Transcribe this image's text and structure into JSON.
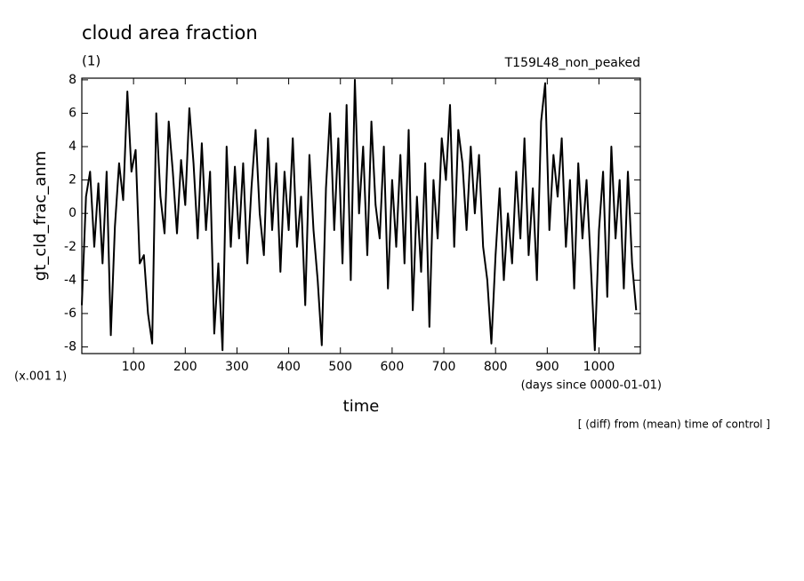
{
  "chart_data": {
    "type": "line",
    "title": "cloud area fraction",
    "subtitle": "(1)",
    "annotation_right": "T159L48_non_peaked",
    "y_label": "gt_cld_frac_anm",
    "y_unit": "(x.001 1)",
    "x_unit": "(days since 0000-01-01)",
    "x_label": "time",
    "footnote": "[ (diff) from (mean) time of control ]",
    "xlim": [
      0,
      1080
    ],
    "ylim": [
      -8.4,
      8.1
    ],
    "xticks": [
      100,
      200,
      300,
      400,
      500,
      600,
      700,
      800,
      900,
      1000
    ],
    "yticks": [
      -8,
      -6,
      -4,
      -2,
      0,
      2,
      4,
      6,
      8
    ],
    "series": [
      {
        "name": "gt_cld_frac_anm",
        "color": "#000000",
        "x": [
          0,
          8,
          16,
          24,
          32,
          40,
          48,
          56,
          64,
          72,
          80,
          88,
          96,
          104,
          112,
          120,
          128,
          136,
          144,
          152,
          160,
          168,
          176,
          184,
          192,
          200,
          208,
          216,
          224,
          232,
          240,
          248,
          256,
          264,
          272,
          280,
          288,
          296,
          304,
          312,
          320,
          328,
          336,
          344,
          352,
          360,
          368,
          376,
          384,
          392,
          400,
          408,
          416,
          424,
          432,
          440,
          448,
          456,
          464,
          472,
          480,
          488,
          496,
          504,
          512,
          520,
          528,
          536,
          544,
          552,
          560,
          568,
          576,
          584,
          592,
          600,
          608,
          616,
          624,
          632,
          640,
          648,
          656,
          664,
          672,
          680,
          688,
          696,
          704,
          712,
          720,
          728,
          736,
          744,
          752,
          760,
          768,
          776,
          784,
          792,
          800,
          808,
          816,
          824,
          832,
          840,
          848,
          856,
          864,
          872,
          880,
          888,
          896,
          904,
          912,
          920,
          928,
          936,
          944,
          952,
          960,
          968,
          976,
          984,
          992,
          1000,
          1008,
          1016,
          1024,
          1032,
          1040,
          1048,
          1056,
          1064,
          1072
        ],
        "values": [
          -5.5,
          1,
          2.5,
          -2,
          1.8,
          -3,
          2.5,
          -7.3,
          -0.8,
          3,
          0.8,
          7.3,
          2.5,
          3.8,
          -3,
          -2.5,
          -6,
          -7.8,
          6,
          1,
          -1.2,
          5.5,
          2.5,
          -1.2,
          3.2,
          0.5,
          6.3,
          3,
          -1.5,
          4.2,
          -1,
          2.5,
          -7.2,
          -3,
          -8.2,
          4,
          -2,
          2.8,
          -1.5,
          3,
          -3,
          1.5,
          5,
          0,
          -2.5,
          4.5,
          -1,
          3,
          -3.5,
          2.5,
          -1,
          4.5,
          -2,
          1,
          -5.5,
          3.5,
          -1,
          -4,
          -7.9,
          1.5,
          6,
          -1,
          4.5,
          -3,
          6.5,
          -4,
          8,
          0,
          4,
          -2.5,
          5.5,
          0.5,
          -1.5,
          4,
          -4.5,
          2,
          -2,
          3.5,
          -3,
          5,
          -5.8,
          1,
          -3.5,
          3,
          -6.8,
          2,
          -1.5,
          4.5,
          2,
          6.5,
          -2,
          5,
          3,
          -1,
          4,
          0,
          3.5,
          -2,
          -4,
          -7.8,
          -2.5,
          1.5,
          -4,
          0,
          -3,
          2.5,
          -1.5,
          4.5,
          -2.5,
          1.5,
          -4,
          5.5,
          7.8,
          -1,
          3.5,
          1,
          4.5,
          -2,
          2,
          -4.5,
          3,
          -1.5,
          2,
          -3,
          -8.2,
          -1,
          2.5,
          -5,
          4,
          -1.5,
          2,
          -4.5,
          2.5,
          -3,
          -5.8
        ]
      }
    ]
  }
}
